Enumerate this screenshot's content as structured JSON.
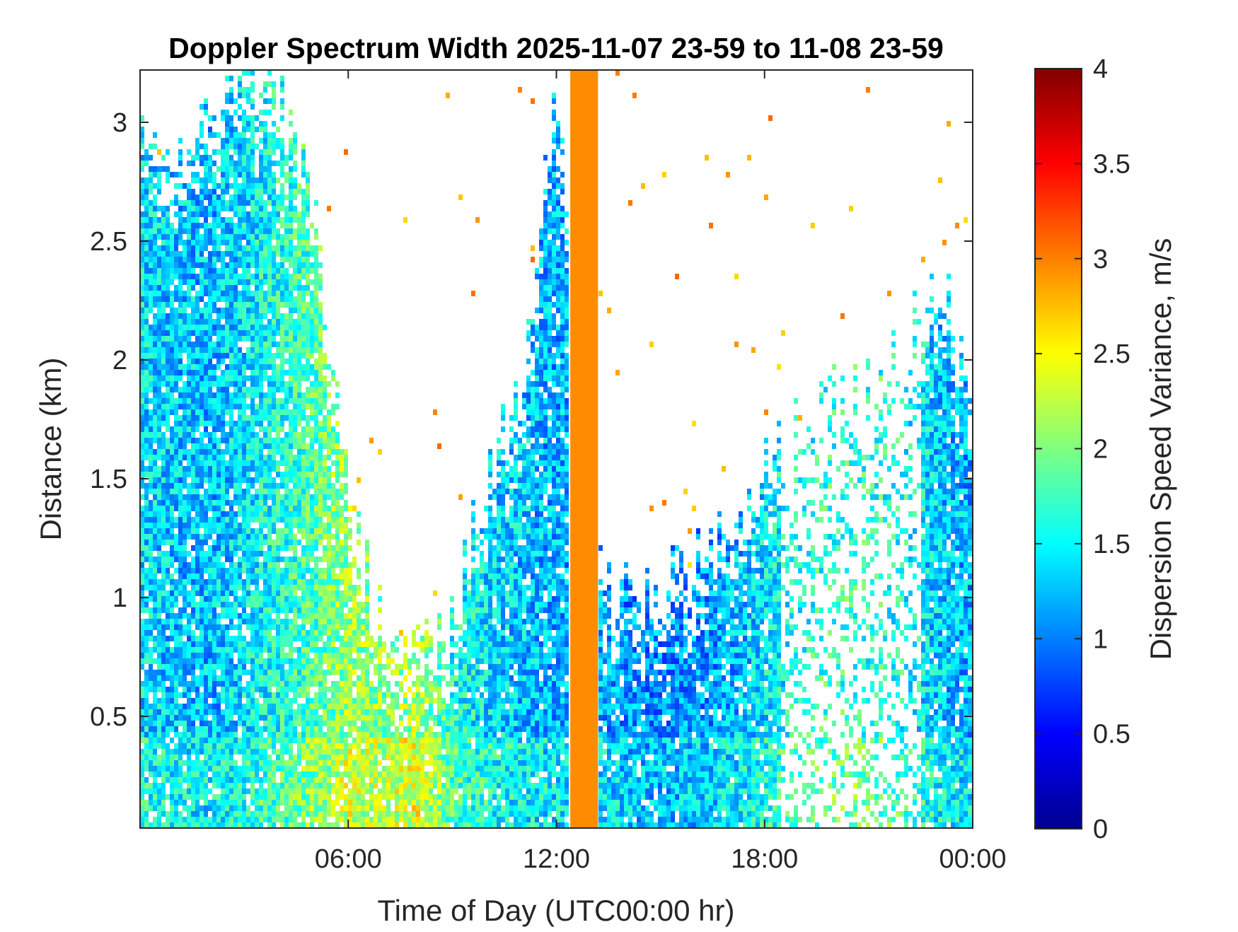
{
  "chart_data": {
    "type": "heatmap",
    "title": "Doppler Spectrum Width 2025-11-07 23-59 to 11-08 23-59",
    "xlabel": "Time of Day (UTC00:00 hr)",
    "ylabel": "Distance (km)",
    "xlim_hours": [
      0,
      24
    ],
    "ylim_km": [
      0.03,
      3.22
    ],
    "x_ticks": [
      {
        "value": 6,
        "label": "06:00"
      },
      {
        "value": 12,
        "label": "12:00"
      },
      {
        "value": 18,
        "label": "18:00"
      },
      {
        "value": 24,
        "label": "00:00"
      }
    ],
    "y_ticks": [
      {
        "value": 0.5,
        "label": "0.5"
      },
      {
        "value": 1,
        "label": "1"
      },
      {
        "value": 1.5,
        "label": "1.5"
      },
      {
        "value": 2,
        "label": "2"
      },
      {
        "value": 2.5,
        "label": "2.5"
      },
      {
        "value": 3,
        "label": "3"
      }
    ],
    "colorbar": {
      "label": "Dispersion Speed Variance, m/s",
      "colormap": "jet",
      "range": [
        0,
        4
      ],
      "ticks": [
        {
          "value": 0,
          "label": "0"
        },
        {
          "value": 0.5,
          "label": "0.5"
        },
        {
          "value": 1,
          "label": "1"
        },
        {
          "value": 1.5,
          "label": "1.5"
        },
        {
          "value": 2,
          "label": "2"
        },
        {
          "value": 2.5,
          "label": "2.5"
        },
        {
          "value": 3,
          "label": "3"
        },
        {
          "value": 3.5,
          "label": "3.5"
        },
        {
          "value": 4,
          "label": "4"
        }
      ]
    },
    "grid": false,
    "saturated_band": {
      "x_hours": [
        12.4,
        13.2
      ],
      "value": 2.95,
      "color": "#ff8c00"
    },
    "echo_top_profile": {
      "hours": [
        0,
        1,
        2,
        3,
        4,
        5,
        6,
        7,
        8,
        9,
        10,
        11,
        12,
        13,
        14,
        15,
        16,
        17,
        18,
        19,
        20,
        21,
        22,
        23,
        24
      ],
      "top_km": [
        3.0,
        2.8,
        3.05,
        3.2,
        3.1,
        2.7,
        1.4,
        0.85,
        0.7,
        0.9,
        1.5,
        1.9,
        3.2,
        1.1,
        1.0,
        1.05,
        1.15,
        1.25,
        1.55,
        1.75,
        1.85,
        1.95,
        2.05,
        2.35,
        1.8
      ],
      "typical_width_m_s": [
        1.4,
        1.3,
        1.25,
        1.4,
        1.6,
        1.8,
        2.1,
        2.0,
        2.2,
        1.6,
        1.4,
        1.3,
        1.2,
        1.25,
        1.1,
        1.05,
        1.1,
        1.2,
        1.4,
        1.6,
        1.7,
        1.7,
        1.6,
        1.3,
        1.2
      ]
    }
  }
}
